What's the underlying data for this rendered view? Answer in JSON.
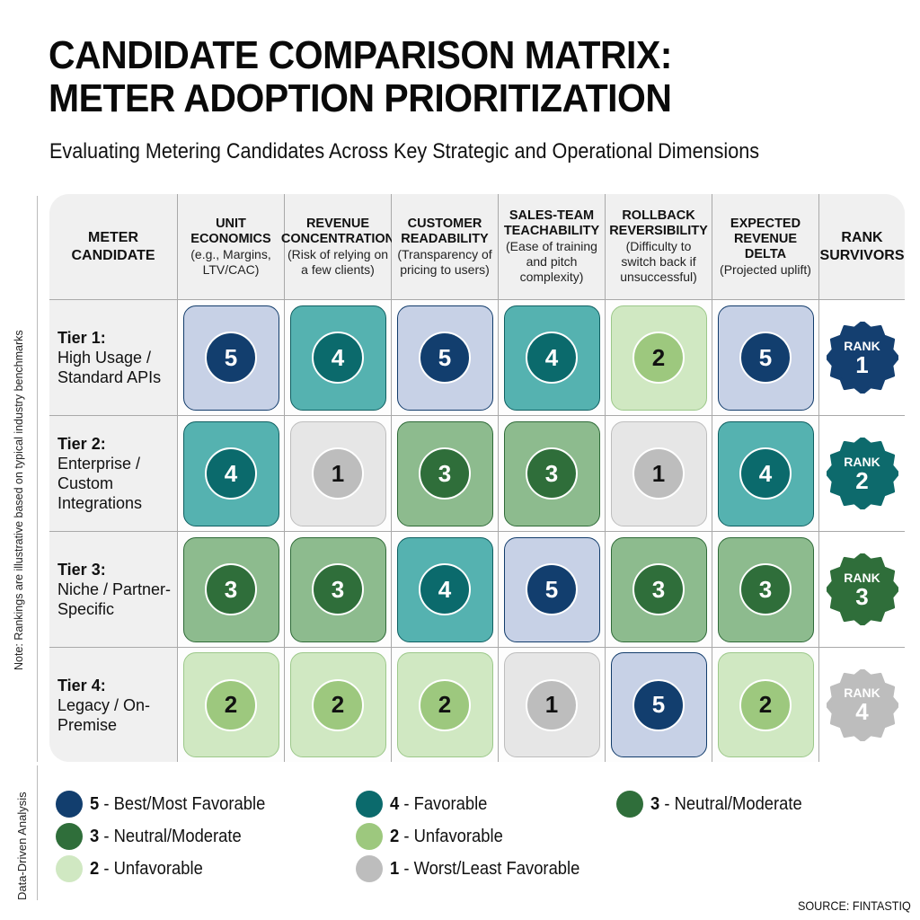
{
  "header": {
    "title_line1": "CANDIDATE COMPARISON MATRIX:",
    "title_line2": "METER ADOPTION PRIORITIZATION",
    "subtitle": "Evaluating Metering Candidates Across Key Strategic and Operational Dimensions"
  },
  "side_notes": {
    "note": "Note: Rankings are illustrative based on typical industry benchmarks",
    "analysis": "Data-Driven Analysis"
  },
  "matrix": {
    "columns": [
      {
        "title": "METER CANDIDATE",
        "sub": ""
      },
      {
        "title": "UNIT ECONOMICS",
        "sub": "(e.g., Margins, LTV/CAC)"
      },
      {
        "title": "REVENUE CONCENTRATION",
        "sub": "(Risk of relying on a few clients)"
      },
      {
        "title": "CUSTOMER READABILITY",
        "sub": "(Transparency of pricing to users)"
      },
      {
        "title": "SALES-TEAM TEACHABILITY",
        "sub": "(Ease of training and pitch complexity)"
      },
      {
        "title": "ROLLBACK REVERSIBILITY",
        "sub": "(Difficulty to switch back if unsuccessful)"
      },
      {
        "title": "EXPECTED REVENUE DELTA",
        "sub": "(Projected uplift)"
      },
      {
        "title": "RANK SURVIVORS",
        "sub": ""
      }
    ],
    "rows": [
      {
        "tier": "Tier 1:",
        "desc": "High Usage / Standard APIs",
        "scores": [
          "5",
          "4",
          "5",
          "4",
          "2",
          "5"
        ],
        "rank_label": "RANK",
        "rank": "1"
      },
      {
        "tier": "Tier 2:",
        "desc": "Enterprise / Custom Integrations",
        "scores": [
          "4",
          "1",
          "3",
          "3",
          "1",
          "4"
        ],
        "rank_label": "RANK",
        "rank": "2"
      },
      {
        "tier": "Tier 3:",
        "desc": "Niche / Partner-Specific",
        "scores": [
          "3",
          "3",
          "4",
          "5",
          "3",
          "3"
        ],
        "rank_label": "RANK",
        "rank": "3"
      },
      {
        "tier": "Tier 4:",
        "desc": "Legacy / On-Premise",
        "scores": [
          "2",
          "2",
          "2",
          "1",
          "5",
          "2"
        ],
        "rank_label": "RANK",
        "rank": "4"
      }
    ]
  },
  "legend": [
    {
      "num": "5",
      "label": " - Best/Most Favorable",
      "color": "#123e6e"
    },
    {
      "num": "4",
      "label": " - Favorable",
      "color": "#0b6a6c"
    },
    {
      "num": "3",
      "label": " - Neutral/Moderate",
      "color": "#2f6e3a"
    },
    {
      "num": "3",
      "label": " - Neutral/Moderate",
      "color": "#2f6e3a"
    },
    {
      "num": "2",
      "label": " - Unfavorable",
      "color": "#9dc87e"
    },
    {
      "num": "2",
      "label": " - Unfavorable",
      "color": "#d0e8c2"
    },
    {
      "num": "1",
      "label": " - Worst/Least Favorable",
      "color": "#bdbdbd"
    }
  ],
  "rank_colors": [
    "#143f70",
    "#0d6a6c",
    "#2f6e3a",
    "#bdbdbd"
  ],
  "source": "SOURCE: FINTASTIQ",
  "chart_data": {
    "type": "table",
    "title": "CANDIDATE COMPARISON MATRIX: METER ADOPTION PRIORITIZATION",
    "subtitle": "Evaluating Metering Candidates Across Key Strategic and Operational Dimensions",
    "columns": [
      "Unit Economics",
      "Revenue Concentration",
      "Customer Readability",
      "Sales-Team Teachability",
      "Rollback Reversibility",
      "Expected Revenue Delta"
    ],
    "rows": [
      "Tier 1: High Usage / Standard APIs",
      "Tier 2: Enterprise / Custom Integrations",
      "Tier 3: Niche / Partner-Specific",
      "Tier 4: Legacy / On-Premise"
    ],
    "values": [
      [
        5,
        4,
        5,
        4,
        2,
        5
      ],
      [
        4,
        1,
        3,
        3,
        1,
        4
      ],
      [
        3,
        3,
        4,
        5,
        3,
        3
      ],
      [
        2,
        2,
        2,
        1,
        5,
        2
      ]
    ],
    "rank": [
      1,
      2,
      3,
      4
    ],
    "scale": {
      "5": "Best/Most Favorable",
      "4": "Favorable",
      "3": "Neutral/Moderate",
      "2": "Unfavorable",
      "1": "Worst/Least Favorable"
    }
  }
}
